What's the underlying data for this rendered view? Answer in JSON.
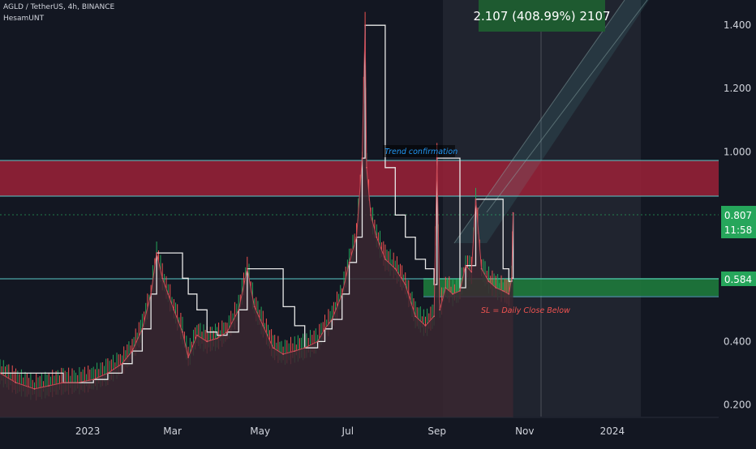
{
  "header": {
    "symbol_line": "AGLD / TetherUS, 4h, BINANCE",
    "author": "HesamUNT"
  },
  "target_box_label": "2.107 (408.99%) 2107",
  "annotations": {
    "trend_confirmation": "Trend confirmation",
    "stop_loss": "SL = Daily Close Below"
  },
  "price_badge": {
    "price": "0.807",
    "countdown": "11:58"
  },
  "level_badge": "0.584",
  "colors": {
    "background": "#131722",
    "resistance_zone": "#9c2137",
    "support_zone": "#1e7a3c",
    "badge_green": "#26a65b",
    "level_line": "#5ac8c8",
    "area_fill": "#3a2730",
    "accent_text": "#2196f3",
    "sl_text": "#ef5350"
  },
  "chart_data": {
    "type": "line",
    "title": "",
    "xlabel": "",
    "ylabel": "",
    "x_tick_labels": [
      "2023",
      "Mar",
      "May",
      "Jul",
      "Sep",
      "Nov",
      "2024"
    ],
    "y_ticks": [
      0.2,
      0.4,
      1.0,
      1.2,
      1.4
    ],
    "y_tick_labels": [
      "0.200",
      "0.400",
      "1.000",
      "1.200",
      "1.400"
    ],
    "ylim": [
      0.16,
      1.48
    ],
    "x_range": [
      "2022-11-01",
      "2024-03-15"
    ],
    "grid": false,
    "series": [
      {
        "values": [
          [
            "2022-11-01",
            0.3
          ],
          [
            "2022-11-12",
            0.27
          ],
          [
            "2022-11-25",
            0.25
          ],
          [
            "2022-12-05",
            0.26
          ],
          [
            "2022-12-15",
            0.27
          ],
          [
            "2022-12-25",
            0.27
          ],
          [
            "2023-01-05",
            0.28
          ],
          [
            "2023-01-15",
            0.3
          ],
          [
            "2023-01-25",
            0.33
          ],
          [
            "2023-02-01",
            0.37
          ],
          [
            "2023-02-08",
            0.44
          ],
          [
            "2023-02-14",
            0.55
          ],
          [
            "2023-02-18",
            0.68
          ],
          [
            "2023-02-22",
            0.6
          ],
          [
            "2023-02-26",
            0.55
          ],
          [
            "2023-03-02",
            0.5
          ],
          [
            "2023-03-08",
            0.43
          ],
          [
            "2023-03-12",
            0.35
          ],
          [
            "2023-03-18",
            0.42
          ],
          [
            "2023-03-25",
            0.4
          ],
          [
            "2023-04-01",
            0.41
          ],
          [
            "2023-04-08",
            0.43
          ],
          [
            "2023-04-16",
            0.5
          ],
          [
            "2023-04-22",
            0.63
          ],
          [
            "2023-04-27",
            0.51
          ],
          [
            "2023-05-03",
            0.45
          ],
          [
            "2023-05-10",
            0.38
          ],
          [
            "2023-05-17",
            0.36
          ],
          [
            "2023-05-25",
            0.37
          ],
          [
            "2023-06-01",
            0.38
          ],
          [
            "2023-06-10",
            0.4
          ],
          [
            "2023-06-15",
            0.44
          ],
          [
            "2023-06-20",
            0.47
          ],
          [
            "2023-06-27",
            0.55
          ],
          [
            "2023-07-02",
            0.65
          ],
          [
            "2023-07-07",
            0.73
          ],
          [
            "2023-07-11",
            0.98
          ],
          [
            "2023-07-13",
            1.4
          ],
          [
            "2023-07-14",
            0.95
          ],
          [
            "2023-07-17",
            0.8
          ],
          [
            "2023-07-21",
            0.73
          ],
          [
            "2023-07-27",
            0.66
          ],
          [
            "2023-08-03",
            0.63
          ],
          [
            "2023-08-10",
            0.58
          ],
          [
            "2023-08-17",
            0.48
          ],
          [
            "2023-08-24",
            0.45
          ],
          [
            "2023-08-30",
            0.48
          ],
          [
            "2023-09-01",
            0.98
          ],
          [
            "2023-09-03",
            0.5
          ],
          [
            "2023-09-07",
            0.57
          ],
          [
            "2023-09-12",
            0.55
          ],
          [
            "2023-09-17",
            0.56
          ],
          [
            "2023-09-21",
            0.64
          ],
          [
            "2023-09-25",
            0.62
          ],
          [
            "2023-09-28",
            0.85
          ],
          [
            "2023-10-02",
            0.63
          ],
          [
            "2023-10-07",
            0.59
          ],
          [
            "2023-10-12",
            0.57
          ],
          [
            "2023-10-17",
            0.56
          ],
          [
            "2023-10-21",
            0.55
          ],
          [
            "2023-10-23",
            0.6
          ],
          [
            "2023-10-24",
            0.807
          ]
        ]
      }
    ]
  }
}
